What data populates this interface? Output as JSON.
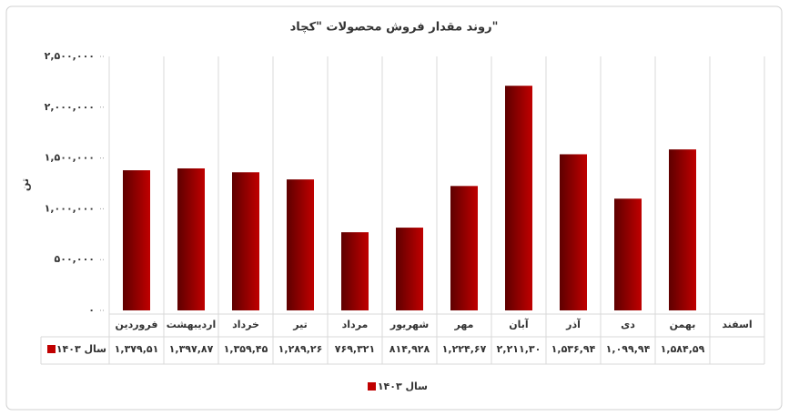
{
  "chart_data": {
    "type": "bar",
    "title": "روند مقدار فروش محصولات \"کچاد\"",
    "y_label": "تن",
    "categories": [
      "فروردین",
      "اردیبهشت",
      "خرداد",
      "تیر",
      "مرداد",
      "شهریور",
      "مهر",
      "آبان",
      "آذر",
      "دی",
      "بهمن",
      "اسفند"
    ],
    "series": [
      {
        "name": "سال ۱۴۰۳",
        "color": "#c00000",
        "values": [
          1379510,
          1397870,
          1359450,
          1289260,
          769321,
          814928,
          1224670,
          2211300,
          1536940,
          1099940,
          1584590,
          null
        ],
        "value_labels": [
          "۱,۳۷۹,۵۱",
          "۱,۳۹۷,۸۷",
          "۱,۳۵۹,۴۵",
          "۱,۲۸۹,۲۶",
          "۷۶۹,۳۲۱",
          "۸۱۴,۹۲۸",
          "۱,۲۲۴,۶۷",
          "۲,۲۱۱,۳۰",
          "۱,۵۳۶,۹۴",
          "۱,۰۹۹,۹۴",
          "۱,۵۸۴,۵۹",
          null
        ]
      }
    ],
    "ylim": [
      0,
      2500000
    ],
    "yticks": [
      {
        "value": 0,
        "label": "۰"
      },
      {
        "value": 500000,
        "label": "۵۰۰,۰۰۰"
      },
      {
        "value": 1000000,
        "label": "۱,۰۰۰,۰۰۰"
      },
      {
        "value": 1500000,
        "label": "۱,۵۰۰,۰۰۰"
      },
      {
        "value": 2000000,
        "label": "۲,۰۰۰,۰۰۰"
      },
      {
        "value": 2500000,
        "label": "۲,۵۰۰,۰۰۰"
      }
    ],
    "grid": true,
    "legend": "bottom"
  }
}
